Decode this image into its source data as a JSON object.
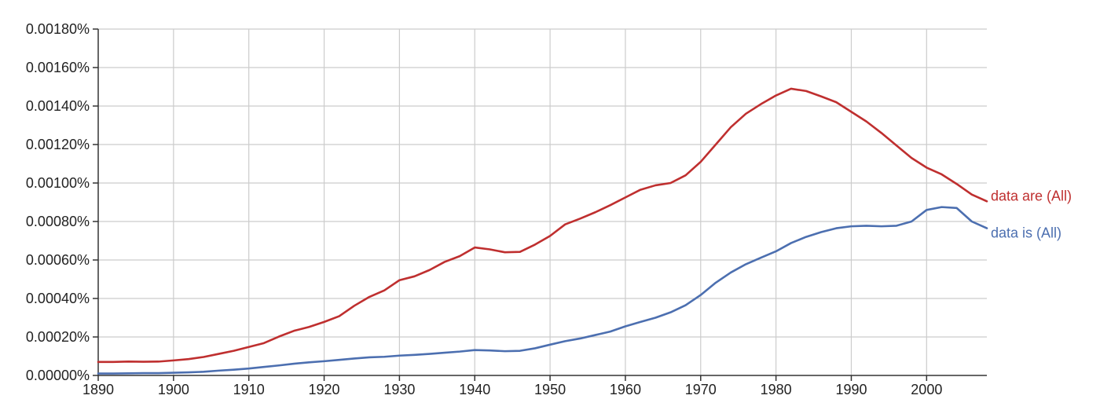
{
  "chart_data": {
    "type": "line",
    "title": "",
    "xlabel": "",
    "ylabel": "",
    "xlim": [
      1890,
      2008
    ],
    "ylim": [
      0,
      0.0018
    ],
    "grid": true,
    "legend": "inline-right",
    "x_ticks": [
      "1890",
      "1900",
      "1910",
      "1920",
      "1930",
      "1940",
      "1950",
      "1960",
      "1970",
      "1980",
      "1990",
      "2000"
    ],
    "y_ticks": [
      "0.00000%",
      "0.00020%",
      "0.00040%",
      "0.00060%",
      "0.00080%",
      "0.00100%",
      "0.00120%",
      "0.00140%",
      "0.00160%",
      "0.00180%"
    ],
    "x": [
      1890,
      1892,
      1894,
      1896,
      1898,
      1900,
      1902,
      1904,
      1906,
      1908,
      1910,
      1912,
      1914,
      1916,
      1918,
      1920,
      1922,
      1924,
      1926,
      1928,
      1930,
      1932,
      1934,
      1936,
      1938,
      1940,
      1942,
      1944,
      1946,
      1948,
      1950,
      1952,
      1954,
      1956,
      1958,
      1960,
      1962,
      1964,
      1966,
      1968,
      1970,
      1972,
      1974,
      1976,
      1978,
      1980,
      1982,
      1984,
      1986,
      1988,
      1990,
      1992,
      1994,
      1996,
      1998,
      2000,
      2002,
      2004,
      2006,
      2008
    ],
    "series": [
      {
        "name": "data are (All)",
        "color": "#bf2f2f",
        "values": [
          7e-05,
          7e-05,
          7.2e-05,
          7.1e-05,
          7.2e-05,
          7.8e-05,
          8.5e-05,
          9.6e-05,
          0.000112,
          0.000128,
          0.000148,
          0.000168,
          0.000202,
          0.000232,
          0.000252,
          0.000278,
          0.000308,
          0.000362,
          0.000408,
          0.000442,
          0.000495,
          0.000515,
          0.000548,
          0.00059,
          0.00062,
          0.000665,
          0.000655,
          0.00064,
          0.000642,
          0.00068,
          0.000725,
          0.000785,
          0.000815,
          0.000848,
          0.000885,
          0.000925,
          0.000965,
          0.000988,
          0.001,
          0.00104,
          0.00111,
          0.0012,
          0.00129,
          0.00136,
          0.00141,
          0.001455,
          0.00149,
          0.001478,
          0.00145,
          0.00142,
          0.00137,
          0.00132,
          0.00126,
          0.001195,
          0.00113,
          0.00108,
          0.001045,
          0.000995,
          0.00094,
          0.000905
        ]
      },
      {
        "name": "data is (All)",
        "color": "#4c6fb0",
        "values": [
          1e-05,
          1e-05,
          1.1e-05,
          1.2e-05,
          1.2e-05,
          1.4e-05,
          1.6e-05,
          1.9e-05,
          2.5e-05,
          3e-05,
          3.6e-05,
          4.4e-05,
          5.2e-05,
          6.1e-05,
          6.8e-05,
          7.4e-05,
          8.1e-05,
          8.8e-05,
          9.4e-05,
          9.7e-05,
          0.000103,
          0.000107,
          0.000112,
          0.000118,
          0.000124,
          0.000132,
          0.00013,
          0.000126,
          0.000128,
          0.000141,
          0.00016,
          0.000178,
          0.000192,
          0.00021,
          0.000228,
          0.000255,
          0.000278,
          0.0003,
          0.000328,
          0.000365,
          0.000418,
          0.000482,
          0.000535,
          0.000578,
          0.000612,
          0.000645,
          0.000688,
          0.00072,
          0.000745,
          0.000765,
          0.000775,
          0.000778,
          0.000775,
          0.000778,
          0.0008,
          0.00086,
          0.000875,
          0.00087,
          0.0008,
          0.000765
        ]
      }
    ]
  }
}
